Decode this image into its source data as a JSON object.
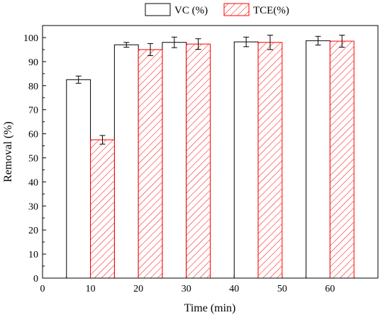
{
  "chart_data": {
    "type": "bar",
    "title": "",
    "xlabel": "Time (min)",
    "ylabel": "Removal (%)",
    "xlim": [
      0,
      70
    ],
    "ylim": [
      0,
      105
    ],
    "x_ticks": [
      "0",
      "10",
      "20",
      "30",
      "40",
      "50",
      "60"
    ],
    "y_ticks": [
      "0",
      "10",
      "20",
      "30",
      "40",
      "50",
      "60",
      "70",
      "80",
      "90",
      "100"
    ],
    "x": [
      10,
      20,
      30,
      45,
      60
    ],
    "bar_width_min": 5,
    "legend_position": "top",
    "series": [
      {
        "name": "VC (%)",
        "values": [
          82.5,
          97,
          98,
          98.2,
          98.7
        ],
        "errors": [
          1.5,
          1.0,
          2.2,
          2.0,
          1.8
        ],
        "fill": "#ffffff",
        "stroke": "#000000",
        "hatch": false
      },
      {
        "name": "TCE(%)",
        "values": [
          57.5,
          95,
          97.3,
          98,
          98.5
        ],
        "errors": [
          1.8,
          2.5,
          2.2,
          3.0,
          2.5
        ],
        "fill": "#ffffff",
        "stroke": "#ff0000",
        "hatch": true
      }
    ]
  }
}
